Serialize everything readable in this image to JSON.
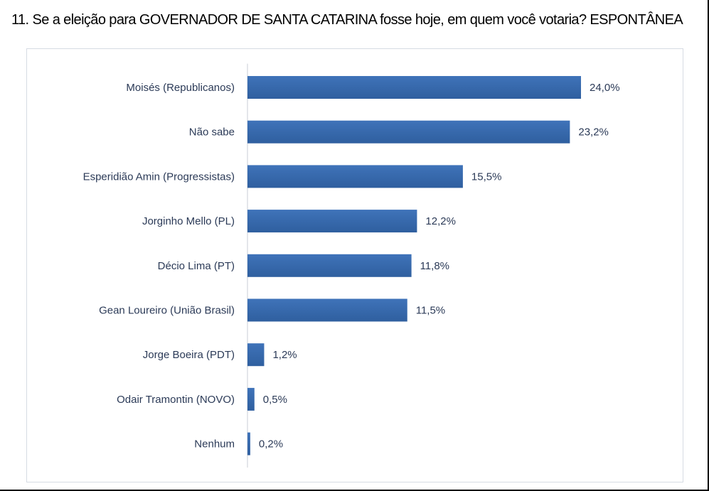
{
  "title": "11. Se a eleição para GOVERNADOR DE SANTA CATARINA fosse hoje, em quem você votaria? ESPONTÂNEA",
  "colors": {
    "bar": "#3f73b9",
    "bar_dark": "#2f5f9f",
    "label_text": "#2b3a57",
    "axis_line": "#c9ced6"
  },
  "chart_data": {
    "type": "bar",
    "orientation": "horizontal",
    "categories": [
      "Moisés (Republicanos)",
      "Não sabe",
      "Esperidião Amin (Progressistas)",
      "Jorginho Mello (PL)",
      "Décio Lima (PT)",
      "Gean Loureiro (União Brasil)",
      "Jorge Boeira (PDT)",
      "Odair Tramontin (NOVO)",
      "Nenhum"
    ],
    "values": [
      24.0,
      23.2,
      15.5,
      12.2,
      11.8,
      11.5,
      1.2,
      0.5,
      0.2
    ],
    "value_labels": [
      "24,0%",
      "23,2%",
      "15,5%",
      "12,2%",
      "11,8%",
      "11,5%",
      "1,2%",
      "0,5%",
      "0,2%"
    ],
    "title": "11. Se a eleição para GOVERNADOR DE SANTA CATARINA fosse hoje, em quem você votaria? ESPONTÂNEA",
    "xlabel": "",
    "ylabel": "",
    "xlim": [
      0,
      24.0
    ],
    "grid": false,
    "legend": "none"
  }
}
